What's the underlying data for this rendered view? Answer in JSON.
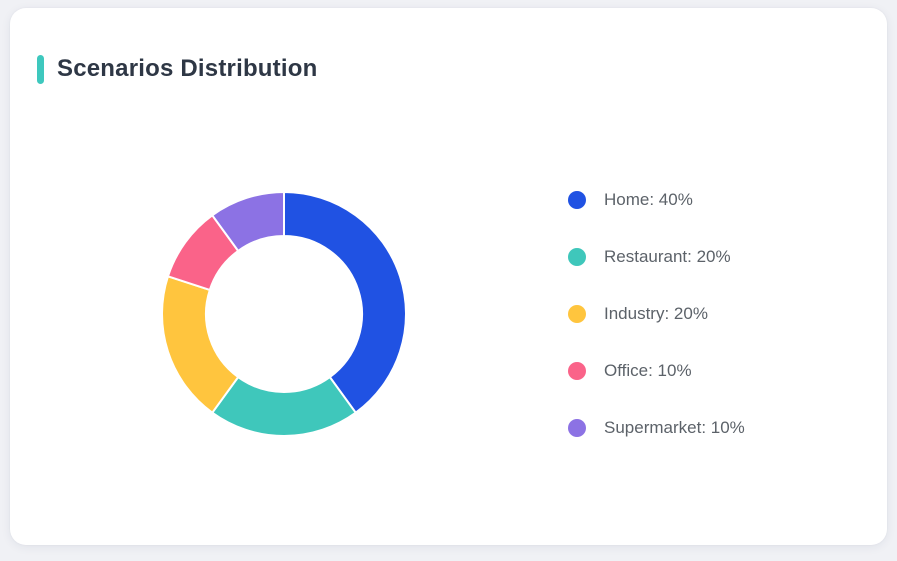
{
  "page": {
    "background_color": "#F0F1F5",
    "card_color": "#FFFFFF"
  },
  "header": {
    "title": "Scenarios Distribution",
    "accent_color": "#3EC8BE",
    "title_color": "#2E3745"
  },
  "chart_data": {
    "type": "pie",
    "variant": "donut",
    "title": "Scenarios Distribution",
    "start_angle_deg": 0,
    "direction": "clockwise",
    "inner_radius_ratio": 0.64,
    "outer_radius_px": 122,
    "inner_radius_px": 78,
    "segment_gap_color": "#FFFFFF",
    "legend_position": "right",
    "label_format": "{name}: {value}%",
    "total": 100,
    "series": [
      {
        "name": "Home",
        "value": 40,
        "color": "#2052E3"
      },
      {
        "name": "Restaurant",
        "value": 20,
        "color": "#3FC7BB"
      },
      {
        "name": "Industry",
        "value": 20,
        "color": "#FFC53E"
      },
      {
        "name": "Office",
        "value": 10,
        "color": "#FA6389"
      },
      {
        "name": "Supermarket",
        "value": 10,
        "color": "#8C72E4"
      }
    ]
  }
}
